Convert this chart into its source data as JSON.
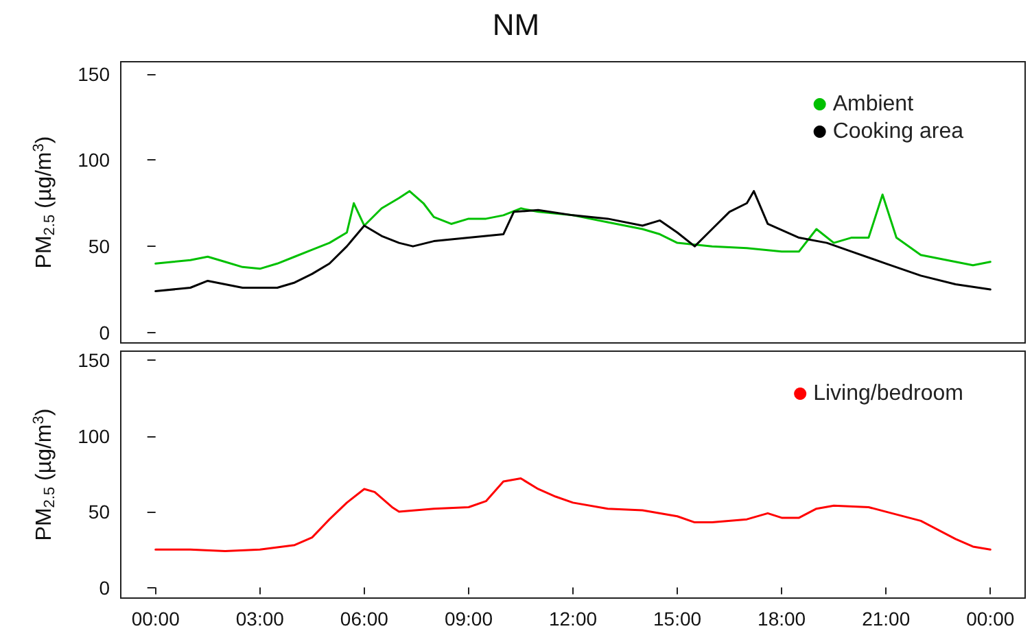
{
  "chart_data": [
    {
      "type": "line",
      "title": "NM",
      "ylabel": "PM$_{2.5}$ (µg/m$^{3}$)",
      "xlim": [
        -1,
        25
      ],
      "ylim": [
        -6,
        157
      ],
      "yticks": [
        0,
        50,
        100,
        150
      ],
      "xticks": [
        {
          "value": 0,
          "label": null
        },
        {
          "value": 3,
          "label": null
        },
        {
          "value": 6,
          "label": null
        },
        {
          "value": 9,
          "label": null
        },
        {
          "value": 12,
          "label": null
        },
        {
          "value": 15,
          "label": null
        },
        {
          "value": 18,
          "label": null
        },
        {
          "value": 21,
          "label": null
        },
        {
          "value": 24,
          "label": null
        }
      ],
      "tick_labels": "y",
      "grid": false,
      "legend": "top right",
      "marker": "none",
      "line_style": "solid",
      "series": [
        {
          "name": "Ambient",
          "color": "#00c000",
          "x": [
            0,
            0.5,
            1,
            1.5,
            2,
            2.5,
            3,
            3.5,
            4,
            4.5,
            5,
            5.5,
            5.7,
            6,
            6.5,
            7,
            7.3,
            7.7,
            8,
            8.5,
            9,
            9.5,
            10,
            10.5,
            11,
            12,
            13,
            14,
            14.5,
            15,
            16,
            17,
            18,
            18.5,
            19,
            19.5,
            20,
            20.5,
            20.9,
            21.3,
            22,
            23,
            23.5,
            24
          ],
          "values": [
            40,
            41,
            42,
            44,
            41,
            38,
            37,
            40,
            44,
            48,
            52,
            58,
            75,
            62,
            72,
            78,
            82,
            75,
            67,
            63,
            66,
            66,
            68,
            72,
            70,
            68,
            64,
            60,
            57,
            52,
            50,
            49,
            47,
            47,
            60,
            52,
            55,
            55,
            80,
            55,
            45,
            41,
            39,
            41
          ]
        },
        {
          "name": "Cooking area",
          "color": "#000000",
          "x": [
            0,
            1,
            1.5,
            2,
            2.5,
            3.5,
            4,
            4.5,
            5,
            5.5,
            6,
            6.5,
            7,
            7.4,
            8,
            9,
            10,
            10.3,
            11,
            12,
            13,
            14,
            14.5,
            15,
            15.5,
            16,
            16.5,
            17,
            17.2,
            17.6,
            18.5,
            19.3,
            20,
            21,
            22,
            23,
            24
          ],
          "values": [
            24,
            26,
            30,
            28,
            26,
            26,
            29,
            34,
            40,
            50,
            62,
            56,
            52,
            50,
            53,
            55,
            57,
            70,
            71,
            68,
            66,
            62,
            65,
            58,
            50,
            60,
            70,
            75,
            82,
            63,
            55,
            52,
            47,
            40,
            33,
            28,
            25
          ]
        }
      ]
    },
    {
      "type": "line",
      "ylabel": "PM$_{2.5}$ (µg/m$^{3}$)",
      "xlim": [
        -1,
        25
      ],
      "ylim": [
        -7,
        156
      ],
      "yticks": [
        0,
        50,
        100,
        150
      ],
      "xticks": [
        {
          "value": 0,
          "label": "00:00"
        },
        {
          "value": 3,
          "label": "03:00"
        },
        {
          "value": 6,
          "label": "06:00"
        },
        {
          "value": 9,
          "label": "09:00"
        },
        {
          "value": 12,
          "label": "12:00"
        },
        {
          "value": 15,
          "label": "15:00"
        },
        {
          "value": 18,
          "label": "18:00"
        },
        {
          "value": 21,
          "label": "21:00"
        },
        {
          "value": 24,
          "label": "00:00"
        }
      ],
      "grid": false,
      "legend": "top right",
      "marker": "none",
      "line_style": "solid",
      "series": [
        {
          "name": "Living/bedroom",
          "color": "#ff0000",
          "x": [
            0,
            1,
            2,
            3,
            4,
            4.5,
            5,
            5.5,
            6,
            6.3,
            6.8,
            7,
            8,
            9,
            9.5,
            10,
            10.5,
            11,
            11.5,
            12,
            13,
            14,
            15,
            15.5,
            16,
            17,
            17.6,
            18,
            18.5,
            19,
            19.5,
            20.5,
            21,
            22,
            23,
            23.5,
            24
          ],
          "values": [
            25,
            25,
            24,
            25,
            28,
            33,
            45,
            56,
            65,
            63,
            53,
            50,
            52,
            53,
            57,
            70,
            72,
            65,
            60,
            56,
            52,
            51,
            47,
            43,
            43,
            45,
            49,
            46,
            46,
            52,
            54,
            53,
            50,
            44,
            32,
            27,
            25
          ]
        }
      ]
    }
  ]
}
